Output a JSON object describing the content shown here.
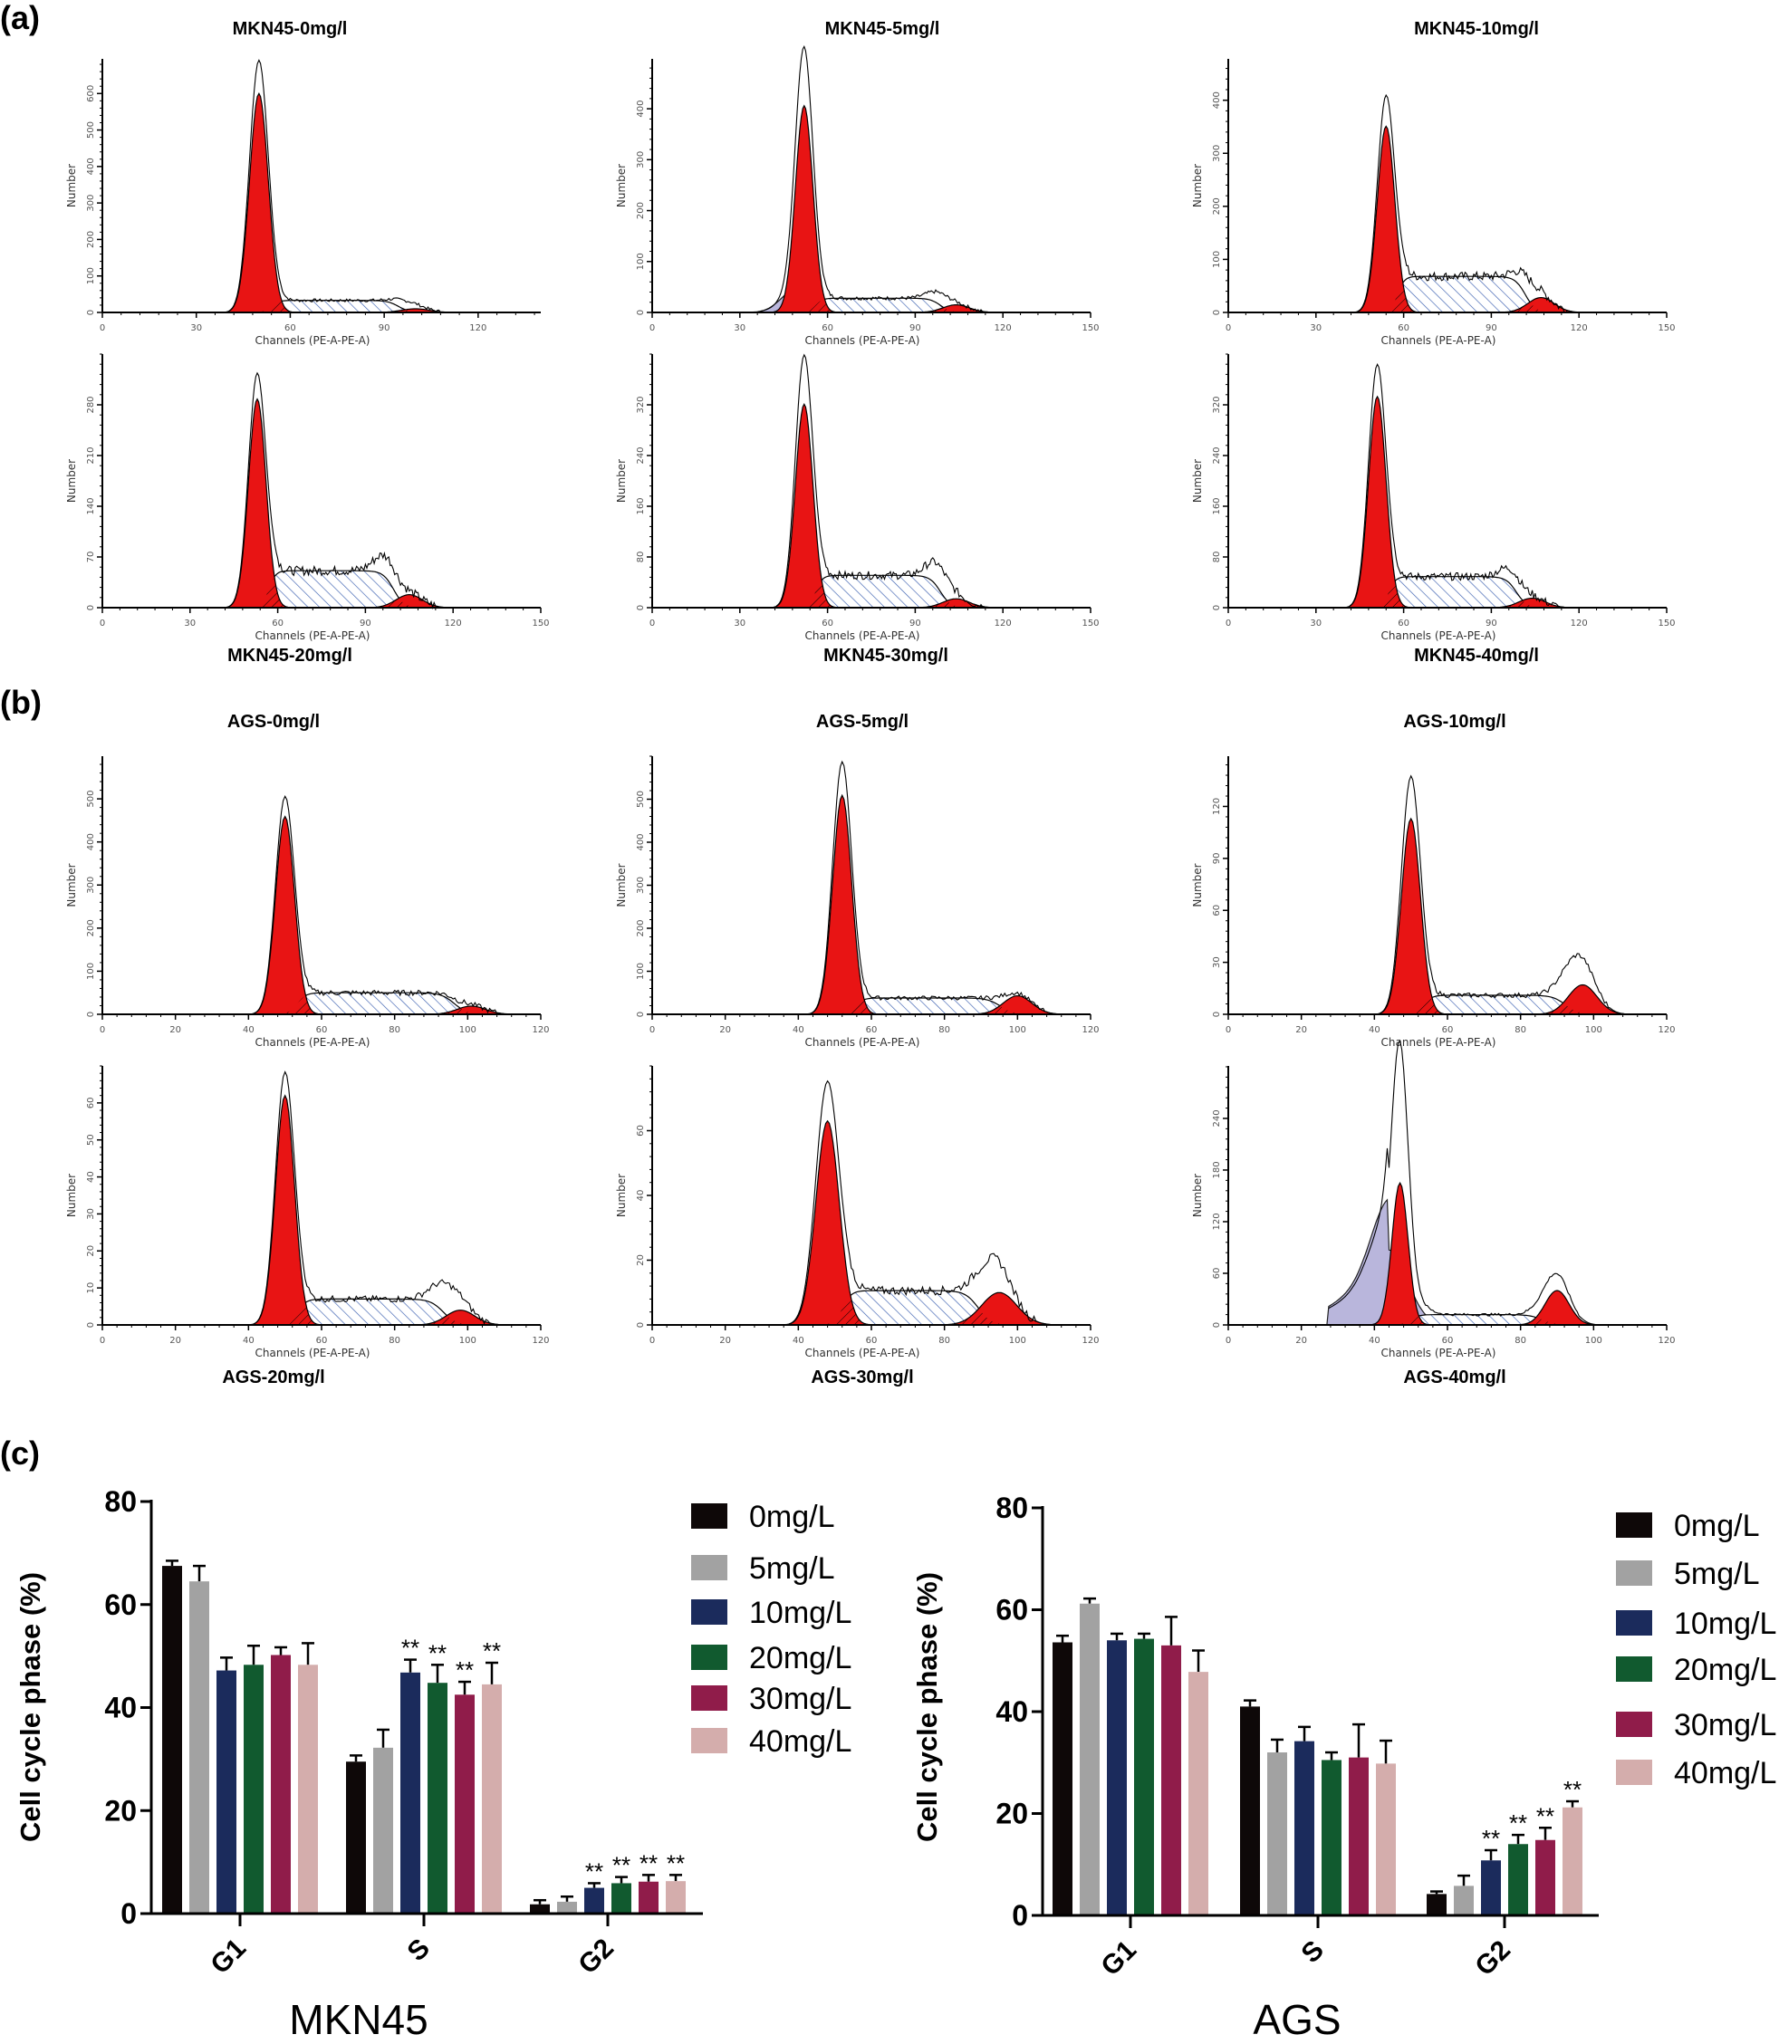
{
  "panel_labels": {
    "a": "(a)",
    "b": "(b)",
    "c": "(c)"
  },
  "chart_data": [
    {
      "type": "area",
      "title": "MKN45-0mg/l",
      "xlabel": "Channels (PE-A-PE-A)",
      "ylabel": "Number",
      "xlim": [
        0,
        140
      ],
      "ylim": [
        0,
        695
      ],
      "xticks": [
        0,
        30,
        60,
        90,
        120
      ],
      "yticks": [
        0,
        100,
        200,
        300,
        400,
        500,
        600
      ],
      "g1": {
        "mean": 50,
        "sd": 3,
        "fit": 600,
        "peak": 690
      },
      "s_level": 33,
      "g2": {
        "mean": 100,
        "height": 10
      },
      "bump": {
        "mean": 97,
        "height": 60
      }
    },
    {
      "type": "area",
      "title": "MKN45-5mg/l",
      "xlabel": "Channels (PE-A-PE-A)",
      "ylabel": "Number",
      "xlim": [
        0,
        150
      ],
      "ylim": [
        0,
        498
      ],
      "xticks": [
        0,
        30,
        60,
        90,
        120,
        150
      ],
      "yticks": [
        0,
        100,
        200,
        300,
        400
      ],
      "g1": {
        "mean": 52,
        "sd": 3,
        "fit": 406,
        "peak": 488
      },
      "s_level": 28,
      "g2": {
        "mean": 104,
        "height": 15
      },
      "bump": {
        "mean": 98,
        "height": 60
      },
      "debris": {
        "mean": 49,
        "height": 44
      }
    },
    {
      "type": "area",
      "title": "MKN45-10mg/l",
      "xlabel": "Channels (PE-A-PE-A)",
      "ylabel": "Number",
      "xlim": [
        0,
        150
      ],
      "ylim": [
        0,
        478
      ],
      "xticks": [
        0,
        30,
        60,
        90,
        120,
        150
      ],
      "yticks": [
        0,
        100,
        200,
        300,
        400
      ],
      "g1": {
        "mean": 54,
        "sd": 3,
        "fit": 351,
        "peak": 407
      },
      "s_level": 68,
      "g2": {
        "mean": 107,
        "height": 28
      },
      "bump": {
        "mean": 102,
        "height": 119
      }
    },
    {
      "type": "area",
      "title": "MKN45-20mg/l",
      "xlabel": "Channels (PE-A-PE-A)",
      "ylabel": "Number",
      "xlim": [
        0,
        150
      ],
      "ylim": [
        0,
        350
      ],
      "xticks": [
        0,
        30,
        60,
        90,
        120,
        150
      ],
      "yticks": [
        0,
        70,
        140,
        210,
        280
      ],
      "g1": {
        "mean": 53,
        "sd": 3,
        "fit": 288,
        "peak": 322
      },
      "s_level": 51,
      "g2": {
        "mean": 105,
        "height": 18
      },
      "bump": {
        "mean": 97,
        "height": 95
      }
    },
    {
      "type": "area",
      "title": "MKN45-30mg/l",
      "xlabel": "Channels (PE-A-PE-A)",
      "ylabel": "Number",
      "xlim": [
        0,
        150
      ],
      "ylim": [
        0,
        400
      ],
      "xticks": [
        0,
        30,
        60,
        90,
        120,
        150
      ],
      "yticks": [
        0,
        80,
        160,
        240,
        320
      ],
      "g1": {
        "mean": 52,
        "sd": 3,
        "fit": 321,
        "peak": 397
      },
      "s_level": 51,
      "g2": {
        "mean": 104,
        "height": 14
      },
      "bump": {
        "mean": 98,
        "height": 97
      }
    },
    {
      "type": "area",
      "title": "MKN45-40mg/l",
      "xlabel": "Channels (PE-A-PE-A)",
      "ylabel": "Number",
      "xlim": [
        0,
        150
      ],
      "ylim": [
        0,
        400
      ],
      "xticks": [
        0,
        30,
        60,
        90,
        120,
        150
      ],
      "yticks": [
        0,
        80,
        160,
        240,
        320
      ],
      "g1": {
        "mean": 51,
        "sd": 3,
        "fit": 333,
        "peak": 382
      },
      "s_level": 49,
      "g2": {
        "mean": 104,
        "height": 15
      },
      "bump": {
        "mean": 97,
        "height": 84
      }
    },
    {
      "type": "area",
      "title": "AGS-0mg/l",
      "xlabel": "Channels (PE-A-PE-A)",
      "ylabel": "Number",
      "xlim": [
        0,
        120
      ],
      "ylim": [
        0,
        599
      ],
      "xticks": [
        0,
        20,
        40,
        60,
        80,
        100,
        120
      ],
      "yticks": [
        0,
        100,
        200,
        300,
        400,
        500
      ],
      "g1": {
        "mean": 50,
        "sd": 2.6,
        "fit": 459,
        "peak": 503
      },
      "s_level": 50,
      "g2": {
        "mean": 101,
        "height": 19
      },
      "bump": {
        "mean": 95,
        "height": 72
      }
    },
    {
      "type": "area",
      "title": "AGS-5mg/l",
      "xlabel": "Channels (PE-A-PE-A)",
      "ylabel": "Number",
      "xlim": [
        0,
        120
      ],
      "ylim": [
        0,
        600
      ],
      "xticks": [
        0,
        20,
        40,
        60,
        80,
        100,
        120
      ],
      "yticks": [
        0,
        100,
        200,
        300,
        400,
        500
      ],
      "g1": {
        "mean": 52,
        "sd": 2.6,
        "fit": 509,
        "peak": 585
      },
      "s_level": 38,
      "g2": {
        "mean": 100,
        "height": 43
      },
      "bump": {
        "mean": 99,
        "height": 85
      }
    },
    {
      "type": "area",
      "title": "AGS-10mg/l",
      "xlabel": "Channels (PE-A-PE-A)",
      "ylabel": "Number",
      "xlim": [
        0,
        120
      ],
      "ylim": [
        0,
        149
      ],
      "xticks": [
        0,
        20,
        40,
        60,
        80,
        100,
        120
      ],
      "yticks": [
        0,
        30,
        60,
        90,
        120
      ],
      "g1": {
        "mean": 50,
        "sd": 2.6,
        "fit": 113,
        "peak": 137
      },
      "s_level": 11,
      "g2": {
        "mean": 97,
        "height": 17
      },
      "bump": {
        "mean": 95,
        "height": 45
      }
    },
    {
      "type": "area",
      "title": "AGS-20mg/l",
      "xlabel": "Channels (PE-A-PE-A)",
      "ylabel": "Number",
      "xlim": [
        0,
        120
      ],
      "ylim": [
        0,
        70
      ],
      "xticks": [
        0,
        20,
        40,
        60,
        80,
        100,
        120
      ],
      "yticks": [
        0,
        10,
        20,
        30,
        40,
        50,
        60
      ],
      "g1": {
        "mean": 50,
        "sd": 2.6,
        "fit": 62,
        "peak": 68
      },
      "s_level": 7,
      "g2": {
        "mean": 98,
        "height": 4
      },
      "bump": {
        "mean": 94,
        "height": 17
      }
    },
    {
      "type": "area",
      "title": "AGS-30mg/l",
      "xlabel": "Channels (PE-A-PE-A)",
      "ylabel": "Number",
      "xlim": [
        0,
        120
      ],
      "ylim": [
        0,
        80
      ],
      "xticks": [
        0,
        20,
        40,
        60,
        80,
        100,
        120
      ],
      "yticks": [
        0,
        20,
        40,
        60
      ],
      "g1": {
        "mean": 48,
        "sd": 3.2,
        "fit": 63,
        "peak": 75
      },
      "s_level": 10.6,
      "g2": {
        "mean": 95,
        "height": 10
      },
      "bump": {
        "mean": 93,
        "height": 31
      }
    },
    {
      "type": "area",
      "title": "AGS-40mg/l",
      "xlabel": "Channels (PE-A-PE-A)",
      "ylabel": "Number",
      "xlim": [
        0,
        120
      ],
      "ylim": [
        0,
        301
      ],
      "xticks": [
        0,
        20,
        40,
        60,
        80,
        100,
        120
      ],
      "yticks": [
        0,
        60,
        120,
        180,
        240
      ],
      "g1": {
        "mean": 47,
        "sd": 2.2,
        "fit": 165,
        "peak": 264
      },
      "s_level": 12,
      "g2": {
        "mean": 90,
        "height": 40
      },
      "bump": {
        "mean": 89,
        "height": 71
      },
      "debris": {
        "mean": 44,
        "height": 87
      }
    },
    {
      "type": "bar",
      "xlabel": "MKN45",
      "ylabel": "Cell cycle phase (%)",
      "ylim": [
        0,
        80
      ],
      "yticks": [
        0,
        20,
        40,
        60,
        80
      ],
      "categories": [
        "G1",
        "S",
        "G2"
      ],
      "series": [
        {
          "name": "0mg/L",
          "color": "#0e0808",
          "values": [
            67.5,
            29.5,
            1.8
          ],
          "errors": [
            1.0,
            1.2,
            0.8
          ],
          "sig": [
            "",
            "",
            ""
          ]
        },
        {
          "name": "5mg/L",
          "color": "#a2a2a2",
          "values": [
            64.5,
            32.2,
            2.3
          ],
          "errors": [
            3.0,
            3.5,
            1.0
          ],
          "sig": [
            "",
            "",
            ""
          ]
        },
        {
          "name": "10mg/L",
          "color": "#1b2b5c",
          "values": [
            47.2,
            46.8,
            5.0
          ],
          "errors": [
            2.5,
            2.5,
            0.9
          ],
          "sig": [
            "",
            "**",
            "**"
          ]
        },
        {
          "name": "20mg/L",
          "color": "#115a2f",
          "values": [
            48.3,
            44.8,
            5.9
          ],
          "errors": [
            3.7,
            3.5,
            1.2
          ],
          "sig": [
            "",
            "**",
            "**"
          ]
        },
        {
          "name": "30mg/L",
          "color": "#901c4a",
          "values": [
            50.2,
            42.5,
            6.2
          ],
          "errors": [
            1.5,
            2.5,
            1.3
          ],
          "sig": [
            "",
            "**",
            "**"
          ]
        },
        {
          "name": "40mg/L",
          "color": "#d4adac",
          "values": [
            48.3,
            44.5,
            6.3
          ],
          "errors": [
            4.2,
            4.2,
            1.2
          ],
          "sig": [
            "",
            "**",
            "**"
          ]
        }
      ]
    },
    {
      "type": "bar",
      "xlabel": "AGS",
      "ylabel": "Cell cycle phase (%)",
      "ylim": [
        0,
        80
      ],
      "yticks": [
        0,
        20,
        40,
        60,
        80
      ],
      "categories": [
        "G1",
        "S",
        "G2"
      ],
      "series": [
        {
          "name": "0mg/L",
          "color": "#0e0808",
          "values": [
            53.6,
            41.0,
            4.2
          ],
          "errors": [
            1.3,
            1.2,
            0.5
          ],
          "sig": [
            "",
            "",
            ""
          ]
        },
        {
          "name": "5mg/L",
          "color": "#a2a2a2",
          "values": [
            61.2,
            32.0,
            5.8
          ],
          "errors": [
            1.0,
            2.5,
            2.0
          ],
          "sig": [
            "",
            "",
            ""
          ]
        },
        {
          "name": "10mg/L",
          "color": "#1b2b5c",
          "values": [
            54.0,
            34.2,
            10.8
          ],
          "errors": [
            1.3,
            2.8,
            2.0
          ],
          "sig": [
            "",
            "",
            "**"
          ]
        },
        {
          "name": "20mg/L",
          "color": "#115a2f",
          "values": [
            54.3,
            30.5,
            14.0
          ],
          "errors": [
            1.0,
            1.5,
            1.8
          ],
          "sig": [
            "",
            "",
            "**"
          ]
        },
        {
          "name": "30mg/L",
          "color": "#901c4a",
          "values": [
            53.0,
            31.0,
            14.8
          ],
          "errors": [
            5.6,
            6.5,
            2.4
          ],
          "sig": [
            "",
            "",
            "**"
          ]
        },
        {
          "name": "40mg/L",
          "color": "#d4adac",
          "values": [
            47.8,
            29.8,
            21.2
          ],
          "errors": [
            4.2,
            4.5,
            1.2
          ],
          "sig": [
            "",
            "",
            "**"
          ]
        }
      ]
    }
  ],
  "colors": {
    "fit_peak": "#e81414",
    "s_phase_hatch": "#3a5fb0",
    "debris": "#b9b6dc",
    "outline": "#000000"
  }
}
